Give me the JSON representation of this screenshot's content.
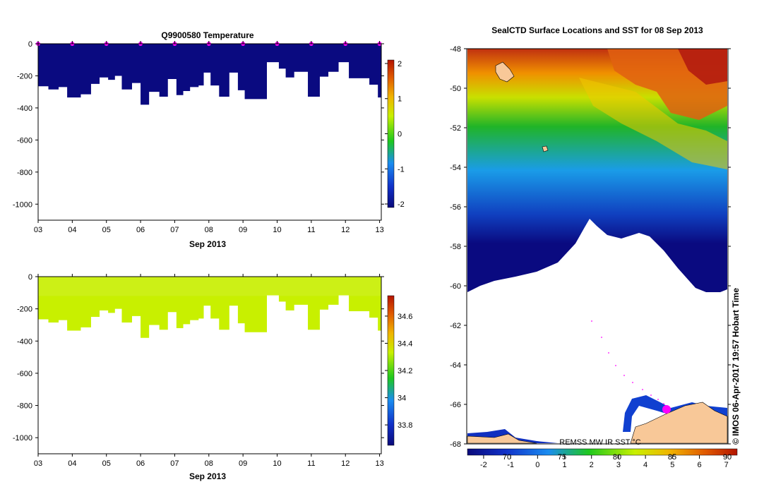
{
  "chart_data": [
    {
      "type": "heatmap",
      "title": "Q9900580  Temperature",
      "xlabel": "Sep 2013",
      "ylabel": "",
      "xlim": [
        3.0,
        13.05
      ],
      "ylim": [
        -1100,
        0
      ],
      "x_tick_labels": [
        "03",
        "04",
        "05",
        "06",
        "07",
        "08",
        "09",
        "10",
        "11",
        "12",
        "13"
      ],
      "y_ticks": [
        0,
        -200,
        -400,
        -600,
        -800,
        -1000
      ],
      "colorbar": {
        "min": -2.1,
        "max": 2.1,
        "ticks": [
          2,
          1,
          0,
          -1,
          -2
        ],
        "colors": [
          "#0a0a7a",
          "#1030c8",
          "#1a8cf0",
          "#1ec81e",
          "#c8f000",
          "#f0b400",
          "#e05a00",
          "#b41400"
        ]
      },
      "fill_color": "#0a0a80",
      "profile_x": [
        3.0,
        3.3,
        3.6,
        3.85,
        4.25,
        4.55,
        4.8,
        5.05,
        5.25,
        5.45,
        5.75,
        6.0,
        6.25,
        6.55,
        6.8,
        7.05,
        7.25,
        7.45,
        7.7,
        7.85,
        8.05,
        8.3,
        8.6,
        8.85,
        9.05,
        9.3,
        9.7,
        10.05,
        10.25,
        10.5,
        10.9,
        11.25,
        11.5,
        11.8,
        12.1,
        12.4,
        12.7,
        12.95,
        13.05
      ],
      "profile_depth": [
        -265,
        -285,
        -270,
        -335,
        -315,
        -250,
        -210,
        -225,
        -200,
        -285,
        -245,
        -380,
        -300,
        -330,
        -220,
        -320,
        -295,
        -270,
        -260,
        -180,
        -260,
        -330,
        -180,
        -290,
        -345,
        -345,
        -115,
        -155,
        -210,
        -175,
        -330,
        -205,
        -175,
        -115,
        -215,
        -215,
        -255,
        -335,
        -335
      ],
      "markers_x": [
        3.0,
        4.0,
        5.0,
        6.0,
        7.0,
        8.0,
        9.0,
        10.0,
        11.0,
        12.0,
        13.0
      ],
      "marker_color": "#ff00ff"
    },
    {
      "type": "heatmap",
      "title": "",
      "xlabel": "Sep 2013",
      "ylabel": "",
      "xlim": [
        3.0,
        13.05
      ],
      "ylim": [
        -1100,
        0
      ],
      "x_tick_labels": [
        "03",
        "04",
        "05",
        "06",
        "07",
        "08",
        "09",
        "10",
        "11",
        "12",
        "13"
      ],
      "y_ticks": [
        0,
        -200,
        -400,
        -600,
        -800,
        -1000
      ],
      "colorbar": {
        "min": 33.65,
        "max": 34.75,
        "ticks": [
          34.6,
          34.4,
          34.2,
          34,
          33.8
        ],
        "colors": [
          "#0a0a7a",
          "#1030c8",
          "#1a8cf0",
          "#1ec81e",
          "#c8f000",
          "#f0b400",
          "#e05a00",
          "#b41400"
        ]
      },
      "fill_color": "#c8f000",
      "profile_x": [
        3.0,
        3.3,
        3.6,
        3.85,
        4.25,
        4.55,
        4.8,
        5.05,
        5.25,
        5.45,
        5.75,
        6.0,
        6.25,
        6.55,
        6.8,
        7.05,
        7.25,
        7.45,
        7.7,
        7.85,
        8.05,
        8.3,
        8.6,
        8.85,
        9.05,
        9.3,
        9.7,
        10.05,
        10.25,
        10.5,
        10.9,
        11.25,
        11.5,
        11.8,
        12.1,
        12.4,
        12.7,
        12.95,
        13.05
      ],
      "profile_depth": [
        -265,
        -285,
        -270,
        -335,
        -315,
        -250,
        -210,
        -225,
        -200,
        -285,
        -245,
        -380,
        -300,
        -330,
        -220,
        -320,
        -295,
        -270,
        -260,
        -180,
        -260,
        -330,
        -180,
        -290,
        -345,
        -345,
        -115,
        -155,
        -210,
        -175,
        -330,
        -205,
        -175,
        -115,
        -215,
        -215,
        -255,
        -335,
        -335
      ]
    },
    {
      "type": "heatmap",
      "title": "SealCTD Surface Locations and SST for 08 Sep 2013",
      "xlabel": "REMSS MW IR SST °C",
      "ylabel": "",
      "ylim": [
        -68,
        -48
      ],
      "y_ticks": [
        -48,
        -50,
        -52,
        -54,
        -56,
        -58,
        -60,
        -62,
        -64,
        -66,
        -68
      ],
      "colorbar": {
        "min": -2.6,
        "max": 7.4,
        "ticks": [
          -2,
          -1,
          0,
          1,
          2,
          3,
          4,
          5,
          6,
          7
        ],
        "colors": [
          "#0a0a7a",
          "#1030c8",
          "#1a8cf0",
          "#1ec81e",
          "#c8f000",
          "#f0b400",
          "#e05a00",
          "#b41400"
        ]
      },
      "secondary_ticks": [
        "70",
        "75",
        "80",
        "85",
        "90"
      ],
      "trajectory_color": "#ff00ff",
      "land_color": "#f8c898"
    }
  ],
  "side_text": "©  IMOS 06-Apr-2017 19:57 Hobart Time"
}
